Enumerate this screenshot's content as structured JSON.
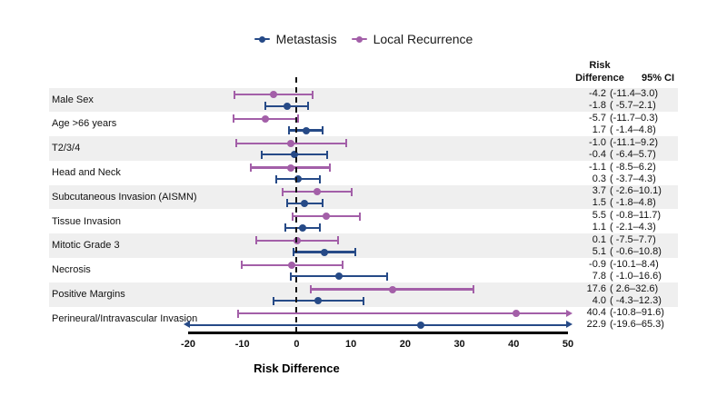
{
  "legend": {
    "items": [
      {
        "label": "Metastasis"
      },
      {
        "label": "Local Recurrence"
      }
    ]
  },
  "table": {
    "header_risk": "Risk",
    "header_difference": "Difference",
    "header_ci": "95% CI"
  },
  "chart_data": {
    "type": "scatter",
    "subtype": "forest-plot",
    "xlabel": "Risk Difference",
    "xlim": [
      -20,
      50
    ],
    "xticks": [
      -20,
      -10,
      0,
      10,
      20,
      30,
      40,
      50
    ],
    "zero_reference_line": 0,
    "row_shading_color": "#efefef",
    "categories": [
      "Male Sex",
      "Age >66 years",
      "T2/3/4",
      "Head and Neck",
      "Subcutaneous Invasion (AISMN)",
      "Tissue Invasion",
      "Mitotic Grade 3",
      "Necrosis",
      "Positive Margins",
      "Perineural/Intravascular Invasion"
    ],
    "series": [
      {
        "name": "Metastasis",
        "color": "#264a87",
        "row_position": "bottom",
        "points": [
          {
            "estimate": -1.8,
            "lower": -5.7,
            "upper": 2.1,
            "rd_text": "-1.8",
            "ci_text": "( -5.7–2.1)"
          },
          {
            "estimate": 1.7,
            "lower": -1.4,
            "upper": 4.8,
            "rd_text": "1.7",
            "ci_text": "( -1.4–4.8)"
          },
          {
            "estimate": -0.4,
            "lower": -6.4,
            "upper": 5.7,
            "rd_text": "-0.4",
            "ci_text": "( -6.4–5.7)"
          },
          {
            "estimate": 0.3,
            "lower": -3.7,
            "upper": 4.3,
            "rd_text": "0.3",
            "ci_text": "( -3.7–4.3)"
          },
          {
            "estimate": 1.5,
            "lower": -1.8,
            "upper": 4.8,
            "rd_text": "1.5",
            "ci_text": "( -1.8–4.8)"
          },
          {
            "estimate": 1.1,
            "lower": -2.1,
            "upper": 4.3,
            "rd_text": "1.1",
            "ci_text": "( -2.1–4.3)"
          },
          {
            "estimate": 5.1,
            "lower": -0.6,
            "upper": 10.8,
            "rd_text": "5.1",
            "ci_text": "( -0.6–10.8)"
          },
          {
            "estimate": 7.8,
            "lower": -1.0,
            "upper": 16.6,
            "rd_text": "7.8",
            "ci_text": "( -1.0–16.6)"
          },
          {
            "estimate": 4.0,
            "lower": -4.3,
            "upper": 12.3,
            "rd_text": "4.0",
            "ci_text": "( -4.3–12.3)"
          },
          {
            "estimate": 22.9,
            "lower": -19.6,
            "upper": 65.3,
            "rd_text": "22.9",
            "ci_text": "(-19.6–65.3)",
            "arrow_left": true,
            "arrow_right": true
          }
        ]
      },
      {
        "name": "Local Recurrence",
        "color": "#a35fa8",
        "row_position": "top",
        "points": [
          {
            "estimate": -4.2,
            "lower": -11.4,
            "upper": 3.0,
            "rd_text": "-4.2",
            "ci_text": "(-11.4–3.0)"
          },
          {
            "estimate": -5.7,
            "lower": -11.7,
            "upper": 0.3,
            "rd_text": "-5.7",
            "ci_text": "(-11.7–0.3)"
          },
          {
            "estimate": -1.0,
            "lower": -11.1,
            "upper": 9.2,
            "rd_text": "-1.0",
            "ci_text": "(-11.1–9.2)"
          },
          {
            "estimate": -1.1,
            "lower": -8.5,
            "upper": 6.2,
            "rd_text": "-1.1",
            "ci_text": "( -8.5–6.2)"
          },
          {
            "estimate": 3.7,
            "lower": -2.6,
            "upper": 10.1,
            "rd_text": "3.7",
            "ci_text": "( -2.6–10.1)"
          },
          {
            "estimate": 5.5,
            "lower": -0.8,
            "upper": 11.7,
            "rd_text": "5.5",
            "ci_text": "( -0.8–11.7)"
          },
          {
            "estimate": 0.1,
            "lower": -7.5,
            "upper": 7.7,
            "rd_text": "0.1",
            "ci_text": "( -7.5–7.7)"
          },
          {
            "estimate": -0.9,
            "lower": -10.1,
            "upper": 8.4,
            "rd_text": "-0.9",
            "ci_text": "(-10.1–8.4)"
          },
          {
            "estimate": 17.6,
            "lower": 2.6,
            "upper": 32.6,
            "rd_text": "17.6",
            "ci_text": "( 2.6–32.6)"
          },
          {
            "estimate": 40.4,
            "lower": -10.8,
            "upper": 91.6,
            "rd_text": "40.4",
            "ci_text": "(-10.8–91.6)",
            "arrow_right": true
          }
        ]
      }
    ]
  }
}
